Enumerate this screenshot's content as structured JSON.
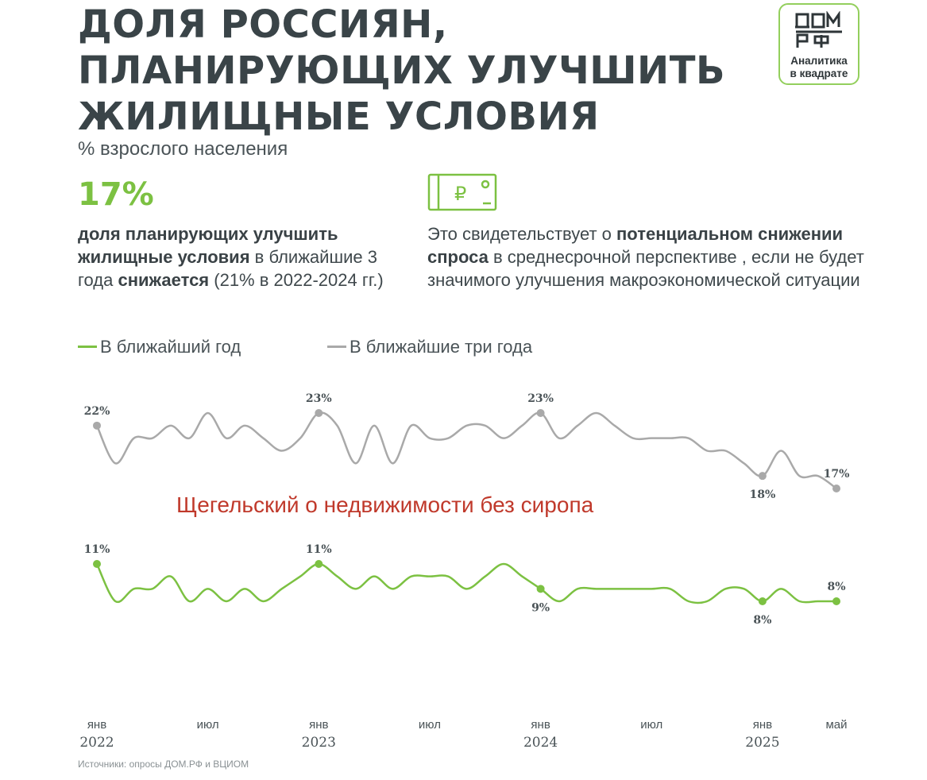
{
  "header": {
    "title": "ДОЛЯ РОССИЯН, ПЛАНИРУЮЩИХ УЛУЧШИТЬ ЖИЛИЩНЫЕ УСЛОВИЯ",
    "subtitle": "% взрослого населения"
  },
  "logo": {
    "line1": "Аналитика",
    "line2": "в квадрате"
  },
  "highlight": {
    "value": "17%",
    "text": {
      "bold1": "доля планирующих улучшить жилищные условия",
      "plain1": " в ближайшие 3 года ",
      "bold2": "снижается",
      "plain2": " (21% в 2022-2024 гг.)"
    }
  },
  "note": {
    "plain1": "Это свидетельствует о ",
    "bold1": "потенциальном снижении спроса",
    "plain2": " в среднесрочной перспективе , если не будет значимого улучшения макроэкономической ситуации"
  },
  "watermark": "Щегельский о недвижимости без сиропа",
  "source": "Источники:  опросы ДОМ.РФ  и ВЦИОМ",
  "colors": {
    "green": "#7cc142",
    "gray": "#a9a9a9",
    "title": "#3a4448"
  },
  "chart_data": {
    "type": "line",
    "x": [
      "янв 2022",
      "фев 2022",
      "мар 2022",
      "апр 2022",
      "май 2022",
      "июн 2022",
      "июл 2022",
      "авг 2022",
      "сен 2022",
      "окт 2022",
      "ноя 2022",
      "дек 2022",
      "янв 2023",
      "фев 2023",
      "мар 2023",
      "апр 2023",
      "май 2023",
      "июн 2023",
      "июл 2023",
      "авг 2023",
      "сен 2023",
      "окт 2023",
      "ноя 2023",
      "дек 2023",
      "янв 2024",
      "фев 2024",
      "мар 2024",
      "апр 2024",
      "май 2024",
      "июн 2024",
      "июл 2024",
      "авг 2024",
      "сен 2024",
      "окт 2024",
      "ноя 2024",
      "дек 2024",
      "янв 2025",
      "фев 2025",
      "мар 2025",
      "апр 2025",
      "май 2025"
    ],
    "x_tick_labels": [
      {
        "top": "янв",
        "bottom": "2022"
      },
      {
        "top": "июл",
        "bottom": ""
      },
      {
        "top": "янв",
        "bottom": "2023"
      },
      {
        "top": "июл",
        "bottom": ""
      },
      {
        "top": "янв",
        "bottom": "2024"
      },
      {
        "top": "июл",
        "bottom": ""
      },
      {
        "top": "янв",
        "bottom": "2025"
      },
      {
        "top": "май",
        "bottom": ""
      }
    ],
    "series": [
      {
        "name": "В ближайшие три года",
        "color": "#a9a9a9",
        "values": [
          22,
          19,
          21,
          21,
          22,
          21,
          23,
          21,
          22,
          21,
          20,
          21,
          23,
          22,
          19,
          22,
          19,
          22,
          21,
          21,
          22,
          22,
          21,
          22,
          23,
          21,
          22,
          23,
          22,
          21,
          21,
          21,
          21,
          20,
          20,
          19,
          18,
          20,
          18,
          18,
          17
        ],
        "labels": [
          {
            "index": 0,
            "text": "22%"
          },
          {
            "index": 12,
            "text": "23%"
          },
          {
            "index": 24,
            "text": "23%"
          },
          {
            "index": 36,
            "text": "18%"
          },
          {
            "index": 40,
            "text": "17%"
          }
        ]
      },
      {
        "name": "В ближайший год",
        "color": "#7cc142",
        "values": [
          11,
          8,
          9,
          9,
          10,
          8,
          9,
          8,
          9,
          8,
          9,
          10,
          11,
          10,
          9,
          10,
          9,
          10,
          10,
          10,
          9,
          10,
          11,
          10,
          9,
          8,
          9,
          9,
          9,
          9,
          9,
          9,
          8,
          8,
          9,
          9,
          8,
          9,
          8,
          8,
          8
        ],
        "labels": [
          {
            "index": 0,
            "text": "11%"
          },
          {
            "index": 12,
            "text": "11%"
          },
          {
            "index": 24,
            "text": "9%"
          },
          {
            "index": 36,
            "text": "8%"
          },
          {
            "index": 40,
            "text": "8%"
          }
        ]
      }
    ]
  }
}
